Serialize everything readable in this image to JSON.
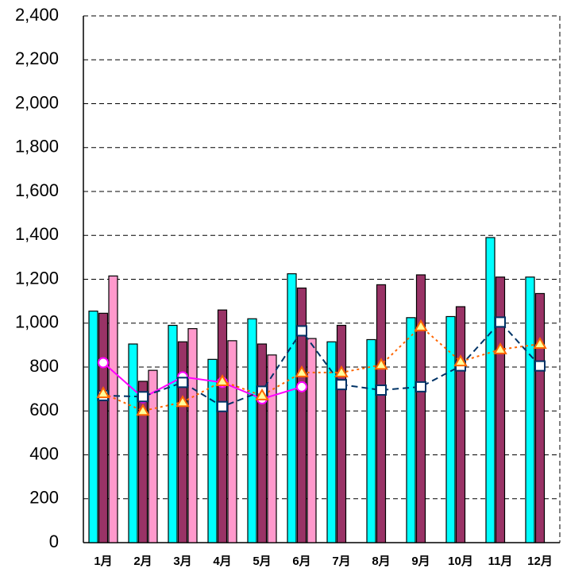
{
  "chart_data": {
    "type": "bar",
    "categories": [
      "1月",
      "2月",
      "3月",
      "4月",
      "5月",
      "6月",
      "7月",
      "8月",
      "9月",
      "10月",
      "11月",
      "12月"
    ],
    "series": [
      {
        "type": "bar",
        "color": "#00ffff",
        "values": [
          1055,
          905,
          990,
          835,
          1020,
          1225,
          915,
          925,
          1025,
          1030,
          1390,
          1210
        ]
      },
      {
        "type": "bar",
        "color": "#993366",
        "values": [
          1045,
          735,
          915,
          1060,
          905,
          1160,
          990,
          1175,
          1220,
          1075,
          1210,
          1135
        ]
      },
      {
        "type": "bar",
        "color": "#ff99cc",
        "values": [
          1215,
          785,
          975,
          920,
          855,
          930,
          null,
          null,
          null,
          null,
          null,
          null
        ]
      },
      {
        "type": "line",
        "color": "#ff00ff",
        "marker": "circle",
        "dash": "none",
        "values": [
          820,
          660,
          755,
          730,
          655,
          710,
          null,
          null,
          null,
          null,
          null,
          null
        ]
      },
      {
        "type": "line",
        "color": "#003366",
        "marker": "square",
        "dash": "8 5",
        "values": [
          670,
          665,
          730,
          620,
          690,
          965,
          720,
          695,
          710,
          805,
          1005,
          805
        ]
      },
      {
        "type": "line",
        "color": "#ff6600",
        "marker": "triangle",
        "dash": "3 4",
        "values": [
          680,
          600,
          640,
          735,
          670,
          775,
          775,
          810,
          985,
          825,
          880,
          905
        ]
      }
    ],
    "ylim": [
      0,
      2400
    ],
    "yticks": [
      0,
      200,
      400,
      600,
      800,
      {
        "value": 1000,
        "label": "1,000"
      },
      {
        "value": 1200,
        "label": "1,200"
      },
      {
        "value": 1400,
        "label": "1,400"
      },
      {
        "value": 1600,
        "label": "1,600"
      },
      {
        "value": 1800,
        "label": "1,800"
      },
      {
        "value": 2000,
        "label": "2,000"
      },
      {
        "value": 2200,
        "label": "2,200"
      },
      {
        "value": 2400,
        "label": "2,400"
      }
    ],
    "grid": true
  }
}
